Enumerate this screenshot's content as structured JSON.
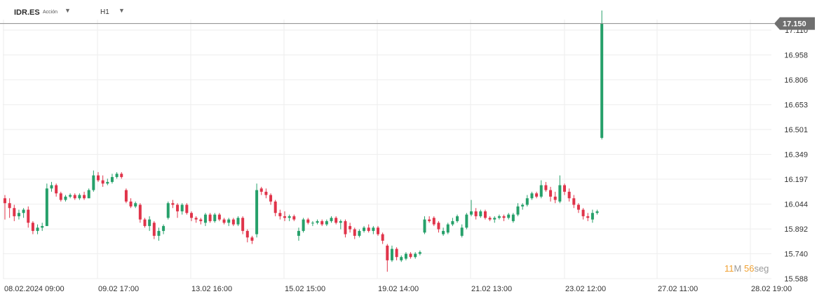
{
  "toolbar": {
    "symbol": "IDR.ES",
    "symbol_type": "Acción",
    "timeframe": "H1",
    "symbol_dropdown_icon": "caret-down-icon",
    "timeframe_dropdown_icon": "caret-down-icon"
  },
  "current_price_label": "17.150",
  "countdown": {
    "minutes": "11",
    "minutes_unit": "M",
    "seconds": "56",
    "seconds_unit": "seg"
  },
  "colors": {
    "bull": "#26a06a",
    "bear": "#e0344a",
    "grid": "#eeeeee",
    "price_line": "#8a8a8a",
    "axis_text": "#333333",
    "countdown": "#f0a030"
  },
  "chart_data": {
    "type": "candlestick",
    "title": "",
    "xlabel": "",
    "ylabel": "",
    "ylim": [
      15.55,
      17.27
    ],
    "y_ticks": [
      "17.110",
      "16.958",
      "16.806",
      "16.653",
      "16.501",
      "16.349",
      "16.197",
      "16.044",
      "15.892",
      "15.740",
      "15.588"
    ],
    "x_tick_labels": [
      "08.02.2024  09:00",
      "09.02  17:00",
      "13.02  16:00",
      "15.02  15:00",
      "19.02  14:00",
      "21.02  13:00",
      "23.02  12:00",
      "27.02  11:00",
      "28.02  19:00"
    ],
    "grid": true,
    "current_price": 17.15,
    "candles": [
      [
        16.08,
        16.1,
        15.95,
        16.05
      ],
      [
        16.05,
        16.08,
        15.96,
        16.02
      ],
      [
        16.02,
        16.04,
        15.94,
        15.97
      ],
      [
        15.97,
        16.01,
        15.95,
        15.99
      ],
      [
        15.99,
        16.02,
        15.96,
        16.01
      ],
      [
        16.01,
        16.03,
        15.9,
        15.93
      ],
      [
        15.93,
        15.94,
        15.86,
        15.88
      ],
      [
        15.88,
        15.92,
        15.86,
        15.9
      ],
      [
        15.9,
        15.93,
        15.88,
        15.91
      ],
      [
        15.91,
        16.17,
        15.91,
        16.14
      ],
      [
        16.14,
        16.18,
        16.12,
        16.16
      ],
      [
        16.16,
        16.17,
        16.09,
        16.11
      ],
      [
        16.11,
        16.12,
        16.06,
        16.07
      ],
      [
        16.07,
        16.1,
        16.06,
        16.09
      ],
      [
        16.09,
        16.11,
        16.08,
        16.1
      ],
      [
        16.1,
        16.11,
        16.07,
        16.08
      ],
      [
        16.08,
        16.11,
        16.07,
        16.1
      ],
      [
        16.1,
        16.12,
        16.07,
        16.08
      ],
      [
        16.08,
        16.14,
        16.08,
        16.13
      ],
      [
        16.13,
        16.25,
        16.12,
        16.22
      ],
      [
        16.22,
        16.24,
        16.18,
        16.19
      ],
      [
        16.19,
        16.22,
        16.15,
        16.17
      ],
      [
        16.17,
        16.2,
        16.16,
        16.18
      ],
      [
        16.18,
        16.23,
        16.17,
        16.21
      ],
      [
        16.21,
        16.24,
        16.2,
        16.23
      ],
      [
        16.23,
        16.24,
        16.2,
        16.21
      ],
      [
        16.13,
        16.14,
        16.05,
        16.06
      ],
      [
        16.06,
        16.08,
        16.02,
        16.03
      ],
      [
        16.03,
        16.06,
        16.02,
        16.05
      ],
      [
        16.04,
        16.05,
        15.93,
        15.95
      ],
      [
        15.95,
        15.96,
        15.9,
        15.91
      ],
      [
        15.91,
        15.97,
        15.88,
        15.95
      ],
      [
        15.93,
        15.94,
        15.83,
        15.85
      ],
      [
        15.85,
        15.9,
        15.82,
        15.88
      ],
      [
        15.88,
        15.92,
        15.86,
        15.91
      ],
      [
        15.96,
        16.06,
        15.95,
        16.05
      ],
      [
        16.05,
        16.07,
        16.02,
        16.04
      ],
      [
        16.04,
        16.05,
        15.96,
        16.0
      ],
      [
        16.0,
        16.05,
        15.98,
        16.04
      ],
      [
        16.04,
        16.05,
        15.98,
        15.99
      ],
      [
        15.99,
        16.0,
        15.94,
        15.96
      ],
      [
        15.96,
        15.97,
        15.93,
        15.95
      ],
      [
        15.95,
        15.96,
        15.92,
        15.94
      ],
      [
        15.93,
        15.99,
        15.91,
        15.98
      ],
      [
        15.98,
        15.99,
        15.93,
        15.94
      ],
      [
        15.94,
        15.99,
        15.93,
        15.98
      ],
      [
        15.98,
        15.99,
        15.94,
        15.95
      ],
      [
        15.95,
        15.96,
        15.92,
        15.93
      ],
      [
        15.93,
        15.96,
        15.91,
        15.95
      ],
      [
        15.95,
        15.96,
        15.91,
        15.92
      ],
      [
        15.92,
        15.97,
        15.91,
        15.96
      ],
      [
        15.96,
        15.97,
        15.86,
        15.88
      ],
      [
        15.88,
        15.89,
        15.81,
        15.84
      ],
      [
        15.84,
        15.85,
        15.8,
        15.82
      ],
      [
        15.86,
        16.17,
        15.84,
        16.13
      ],
      [
        16.14,
        16.15,
        16.1,
        16.12
      ],
      [
        16.12,
        16.14,
        16.08,
        16.1
      ],
      [
        16.1,
        16.11,
        16.04,
        16.06
      ],
      [
        16.06,
        16.07,
        15.97,
        15.99
      ],
      [
        15.99,
        16.01,
        15.95,
        15.97
      ],
      [
        15.97,
        16.0,
        15.94,
        15.96
      ],
      [
        15.96,
        15.98,
        15.94,
        15.97
      ],
      [
        15.97,
        15.98,
        15.94,
        15.95
      ],
      [
        15.85,
        15.9,
        15.82,
        15.88
      ],
      [
        15.88,
        15.96,
        15.87,
        15.95
      ],
      [
        15.95,
        15.96,
        15.92,
        15.93
      ],
      [
        15.93,
        15.94,
        15.91,
        15.93
      ],
      [
        15.93,
        15.95,
        15.92,
        15.94
      ],
      [
        15.94,
        15.95,
        15.91,
        15.92
      ],
      [
        15.92,
        15.95,
        15.91,
        15.94
      ],
      [
        15.94,
        15.97,
        15.93,
        15.96
      ],
      [
        15.96,
        15.97,
        15.92,
        15.93
      ],
      [
        15.93,
        15.95,
        15.89,
        15.94
      ],
      [
        15.94,
        15.95,
        15.84,
        15.86
      ],
      [
        15.91,
        15.93,
        15.87,
        15.89
      ],
      [
        15.89,
        15.9,
        15.83,
        15.85
      ],
      [
        15.85,
        15.89,
        15.84,
        15.88
      ],
      [
        15.88,
        15.91,
        15.87,
        15.9
      ],
      [
        15.9,
        15.92,
        15.87,
        15.88
      ],
      [
        15.88,
        15.91,
        15.86,
        15.9
      ],
      [
        15.9,
        15.91,
        15.85,
        15.86
      ],
      [
        15.86,
        15.87,
        15.8,
        15.82
      ],
      [
        15.79,
        15.8,
        15.63,
        15.7
      ],
      [
        15.7,
        15.79,
        15.69,
        15.77
      ],
      [
        15.77,
        15.78,
        15.7,
        15.72
      ],
      [
        15.7,
        15.73,
        15.69,
        15.72
      ],
      [
        15.71,
        15.75,
        15.7,
        15.74
      ],
      [
        15.74,
        15.75,
        15.71,
        15.72
      ],
      [
        15.72,
        15.75,
        15.71,
        15.74
      ],
      [
        15.74,
        15.76,
        15.73,
        15.75
      ],
      [
        15.87,
        15.97,
        15.86,
        15.95
      ],
      [
        15.95,
        15.97,
        15.93,
        15.94
      ],
      [
        15.96,
        15.97,
        15.91,
        15.92
      ],
      [
        15.93,
        15.94,
        15.87,
        15.89
      ],
      [
        15.86,
        15.9,
        15.85,
        15.88
      ],
      [
        15.87,
        15.93,
        15.86,
        15.92
      ],
      [
        15.92,
        15.96,
        15.91,
        15.94
      ],
      [
        15.94,
        15.98,
        15.93,
        15.97
      ],
      [
        15.85,
        15.92,
        15.84,
        15.9
      ],
      [
        15.9,
        15.99,
        15.89,
        15.98
      ],
      [
        15.98,
        16.07,
        15.97,
        16.0
      ],
      [
        16.0,
        16.02,
        15.95,
        15.97
      ],
      [
        15.97,
        16.01,
        15.96,
        16.0
      ],
      [
        16.0,
        16.01,
        15.95,
        15.96
      ],
      [
        15.96,
        15.97,
        15.94,
        15.95
      ],
      [
        15.95,
        15.97,
        15.93,
        15.96
      ],
      [
        15.96,
        15.98,
        15.95,
        15.97
      ],
      [
        15.97,
        15.98,
        15.94,
        15.96
      ],
      [
        15.96,
        15.99,
        15.95,
        15.98
      ],
      [
        15.94,
        15.99,
        15.93,
        15.98
      ],
      [
        15.98,
        16.05,
        15.97,
        16.03
      ],
      [
        16.03,
        16.05,
        16.01,
        16.04
      ],
      [
        16.04,
        16.1,
        16.03,
        16.08
      ],
      [
        16.08,
        16.12,
        16.07,
        16.11
      ],
      [
        16.11,
        16.12,
        16.08,
        16.09
      ],
      [
        16.09,
        16.19,
        16.08,
        16.16
      ],
      [
        16.16,
        16.18,
        16.12,
        16.13
      ],
      [
        16.13,
        16.15,
        16.06,
        16.09
      ],
      [
        16.09,
        16.12,
        16.05,
        16.07
      ],
      [
        16.06,
        16.22,
        16.05,
        16.16
      ],
      [
        16.16,
        16.17,
        16.1,
        16.12
      ],
      [
        16.12,
        16.14,
        16.06,
        16.08
      ],
      [
        16.08,
        16.1,
        16.02,
        16.04
      ],
      [
        16.04,
        16.05,
        15.99,
        16.01
      ],
      [
        16.01,
        16.02,
        15.95,
        15.97
      ],
      [
        15.97,
        15.99,
        15.94,
        15.96
      ],
      [
        15.95,
        16.01,
        15.93,
        15.99
      ],
      [
        15.99,
        16.01,
        15.98,
        16.0
      ],
      [
        16.45,
        17.23,
        16.44,
        17.15
      ]
    ]
  }
}
